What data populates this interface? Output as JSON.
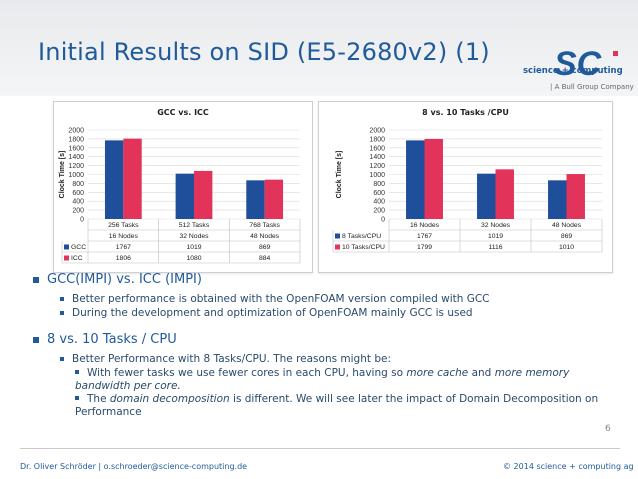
{
  "slide": {
    "title": "Initial Results on SID (E5-2680v2) (1)",
    "logo": {
      "letters": "SC",
      "company": "science + computing",
      "group": "| A Bull Group Company"
    },
    "page_number": "6",
    "footer_left": "Dr. Oliver Schröder  |  o.schroeder@science-computing.de",
    "footer_right": "© 2014 science + computing ag"
  },
  "colors": {
    "series1": "#1f4e9a",
    "series2": "#e2335a",
    "accent": "#1f5a9a"
  },
  "chart_data": [
    {
      "type": "bar",
      "title": "GCC vs. ICC",
      "ylabel": "Clock Time [s]",
      "ylim": [
        0,
        2000
      ],
      "yticks": [
        "2000",
        "1800",
        "1600",
        "1400",
        "1200",
        "1000",
        "800",
        "600",
        "400",
        "200",
        "0"
      ],
      "categories": [
        "256 Tasks",
        "512 Tasks",
        "768 Tasks"
      ],
      "categories2": [
        "16 Nodes",
        "32 Nodes",
        "48 Nodes"
      ],
      "series": [
        {
          "name": "GCC",
          "values": [
            1767,
            1019,
            869
          ]
        },
        {
          "name": "ICC",
          "values": [
            1806,
            1080,
            884
          ]
        }
      ],
      "table_values": [
        [
          "1767",
          "1019",
          "869"
        ],
        [
          "1806",
          "1080",
          "884"
        ]
      ]
    },
    {
      "type": "bar",
      "title": "8 vs. 10 Tasks /CPU",
      "ylabel": "Clock Time [s]",
      "ylim": [
        0,
        2000
      ],
      "yticks": [
        "2000",
        "1800",
        "1600",
        "1400",
        "1200",
        "1000",
        "800",
        "600",
        "400",
        "200",
        "0"
      ],
      "categories": [
        "16 Nodes",
        "32 Nodes",
        "48 Nodes"
      ],
      "series": [
        {
          "name": "8 Tasks/CPU",
          "values": [
            1767,
            1019,
            869
          ]
        },
        {
          "name": "10 Tasks/CPU",
          "values": [
            1799,
            1116,
            1010
          ]
        }
      ],
      "table_values": [
        [
          "1767",
          "1019",
          "869"
        ],
        [
          "1799",
          "1116",
          "1010"
        ]
      ]
    }
  ],
  "bullets": {
    "b1": "GCC(IMPI) vs. ICC (IMPI)",
    "b1_sub1": "Better performance is obtained with the OpenFOAM version compiled with GCC",
    "b1_sub2": "During the development and optimization of OpenFOAM mainly GCC is used",
    "b2": "8 vs. 10 Tasks / CPU",
    "b2_sub1": "Better Performance with 8 Tasks/CPU. The reasons might be:",
    "b2_sub1_a_pre": "With fewer tasks we use fewer cores in each CPU, having so ",
    "b2_sub1_a_em1": "more cache",
    "b2_sub1_a_mid": " and ",
    "b2_sub1_a_em2": "more memory bandwidth per core.",
    "b2_sub1_b_pre": "The ",
    "b2_sub1_b_em": "domain decomposition",
    "b2_sub1_b_post": " is different. We will see later the impact of Domain Decomposition on Performance"
  }
}
